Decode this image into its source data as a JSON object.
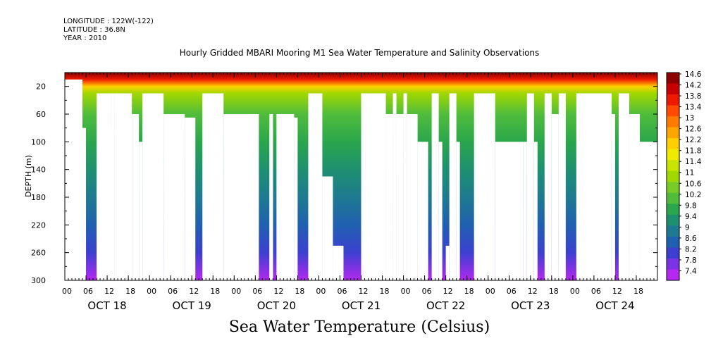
{
  "header": {
    "longitude": "LONGITUDE : 122W(-122)",
    "latitude": "LATITUDE : 36.8N",
    "year": "YEAR : 2010"
  },
  "caption": "Sea Water Temperature (Celsius)",
  "chart_data": {
    "type": "heatmap",
    "title": "Hourly Gridded MBARI Mooring M1 Sea Water Temperature and Salinity Observations",
    "xlabel": "",
    "ylabel": "DEPTH (m)",
    "y_reversed": true,
    "ylim": [
      0,
      300
    ],
    "y_ticks": [
      20,
      60,
      100,
      140,
      180,
      220,
      260,
      300
    ],
    "x_hour_range": [
      0,
      168
    ],
    "x_tick_hours": [
      "00",
      "06",
      "12",
      "18"
    ],
    "x_dates": [
      "OCT 18",
      "OCT 19",
      "OCT 20",
      "OCT 21",
      "OCT 22",
      "OCT 23",
      "OCT 24"
    ],
    "colorbar": {
      "levels": [
        "14.6",
        "14.2",
        "13.8",
        "13.4",
        "13",
        "12.6",
        "12.2",
        "11.8",
        "11.4",
        "11",
        "10.6",
        "10.2",
        "9.8",
        "9.4",
        "9",
        "8.6",
        "8.2",
        "7.8",
        "7.4"
      ],
      "colors": [
        "#8c0000",
        "#c80000",
        "#ee1a00",
        "#ff4a00",
        "#ff7a00",
        "#ffa500",
        "#ffcf00",
        "#f0ea00",
        "#c8e400",
        "#a0d800",
        "#78cc28",
        "#50bc3c",
        "#2aa64c",
        "#1e9070",
        "#1e7a90",
        "#2060b0",
        "#3c40d0",
        "#7a34e6",
        "#b428f0"
      ]
    },
    "profile": [
      {
        "depth": 0,
        "temp": 14.6
      },
      {
        "depth": 10,
        "temp": 13.8
      },
      {
        "depth": 20,
        "temp": 12.4
      },
      {
        "depth": 30,
        "temp": 11.2
      },
      {
        "depth": 60,
        "temp": 10.4
      },
      {
        "depth": 100,
        "temp": 9.8
      },
      {
        "depth": 140,
        "temp": 9.4
      },
      {
        "depth": 180,
        "temp": 9.0
      },
      {
        "depth": 220,
        "temp": 8.6
      },
      {
        "depth": 260,
        "temp": 8.2
      },
      {
        "depth": 300,
        "temp": 7.6
      }
    ],
    "missing_data_hours": [
      {
        "from": 0,
        "to": 5,
        "below_depth": 10
      },
      {
        "from": 5,
        "to": 6,
        "below_depth": 80
      },
      {
        "from": 9,
        "to": 13,
        "below_depth": 30
      },
      {
        "from": 13,
        "to": 14,
        "below_depth": 30
      },
      {
        "from": 13,
        "to": 14,
        "below_depth": 80
      },
      {
        "from": 14,
        "to": 19,
        "below_depth": 30
      },
      {
        "from": 19,
        "to": 21,
        "below_depth": 60
      },
      {
        "from": 21,
        "to": 22,
        "below_depth": 100
      },
      {
        "from": 22,
        "to": 28,
        "below_depth": 30
      },
      {
        "from": 28,
        "to": 34,
        "below_depth": 60
      },
      {
        "from": 34,
        "to": 37,
        "below_depth": 65
      },
      {
        "from": 39,
        "to": 45,
        "below_depth": 30
      },
      {
        "from": 45,
        "to": 55,
        "below_depth": 60
      },
      {
        "from": 58,
        "to": 59,
        "below_depth": 60
      },
      {
        "from": 58,
        "to": 59,
        "below_depth": 80
      },
      {
        "from": 60,
        "to": 65,
        "below_depth": 60
      },
      {
        "from": 65,
        "to": 66,
        "below_depth": 65
      },
      {
        "from": 69,
        "to": 73,
        "below_depth": 30
      },
      {
        "from": 73,
        "to": 76,
        "below_depth": 150
      },
      {
        "from": 76,
        "to": 79,
        "below_depth": 250
      },
      {
        "from": 84,
        "to": 91,
        "below_depth": 30
      },
      {
        "from": 91,
        "to": 93,
        "below_depth": 60
      },
      {
        "from": 93,
        "to": 94,
        "below_depth": 30
      },
      {
        "from": 94,
        "to": 96,
        "below_depth": 60
      },
      {
        "from": 96,
        "to": 97,
        "below_depth": 30
      },
      {
        "from": 97,
        "to": 100,
        "below_depth": 60
      },
      {
        "from": 100,
        "to": 103,
        "below_depth": 100
      },
      {
        "from": 104,
        "to": 106,
        "below_depth": 30
      },
      {
        "from": 106,
        "to": 107,
        "below_depth": 100
      },
      {
        "from": 108,
        "to": 109,
        "below_depth": 250
      },
      {
        "from": 109,
        "to": 111,
        "below_depth": 30
      },
      {
        "from": 111,
        "to": 112,
        "below_depth": 100
      },
      {
        "from": 116,
        "to": 122,
        "below_depth": 30
      },
      {
        "from": 122,
        "to": 130,
        "below_depth": 100
      },
      {
        "from": 130,
        "to": 131,
        "below_depth": 100
      },
      {
        "from": 131,
        "to": 133,
        "below_depth": 30
      },
      {
        "from": 133,
        "to": 134,
        "below_depth": 100
      },
      {
        "from": 136,
        "to": 138,
        "below_depth": 30
      },
      {
        "from": 138,
        "to": 140,
        "below_depth": 60
      },
      {
        "from": 140,
        "to": 142,
        "below_depth": 30
      },
      {
        "from": 145,
        "to": 155,
        "below_depth": 30
      },
      {
        "from": 155,
        "to": 156,
        "below_depth": 60
      },
      {
        "from": 157,
        "to": 160,
        "below_depth": 30
      },
      {
        "from": 160,
        "to": 163,
        "below_depth": 60
      },
      {
        "from": 163,
        "to": 168,
        "below_depth": 100
      }
    ]
  }
}
